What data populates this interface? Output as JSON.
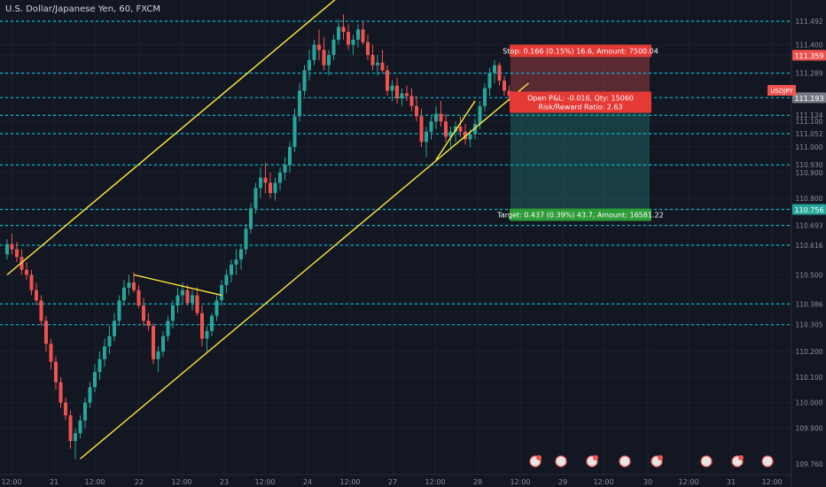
{
  "symbol_title": "U.S. Dollar/Japanese Yen, 60, FXCM",
  "ticker_badge": "USDJPY",
  "colors": {
    "background": "#131722",
    "up": "#26a69a",
    "down": "#ef5350",
    "trendline": "#ffeb3b",
    "level": "#00bcd4",
    "stop_zone": "#ef5350",
    "target_zone": "#26a69a"
  },
  "chart_data": {
    "type": "candlestick",
    "y_axis": {
      "ticks": [
        "111.492",
        "111.400",
        "111.359",
        "111.289",
        "111.193",
        "111.124",
        "111.100",
        "111.052",
        "111.000",
        "110.930",
        "110.900",
        "110.800",
        "110.756",
        "110.693",
        "110.616",
        "110.500",
        "110.386",
        "110.305",
        "110.200",
        "110.100",
        "110.000",
        "109.900",
        "109.760"
      ]
    },
    "x_axis": {
      "ticks": [
        "12:00",
        "21",
        "12:00",
        "22",
        "12:00",
        "23",
        "12:00",
        "24",
        "12:00",
        "27",
        "12:00",
        "28",
        "12:00",
        "29",
        "12:00",
        "30",
        "12:00",
        "31",
        "12:00"
      ]
    },
    "horizontal_levels": [
      111.492,
      111.289,
      111.193,
      111.124,
      111.052,
      110.93,
      110.756,
      110.693,
      110.616,
      110.386,
      110.305
    ],
    "highlighted_levels": [
      {
        "value": 111.359,
        "label": "111.359",
        "color": "#ef5350"
      },
      {
        "value": 111.193,
        "label": "111.193",
        "color": "#787b86"
      },
      {
        "value": 110.756,
        "label": "110.756",
        "color": "#26a69a"
      }
    ],
    "position": {
      "entry": 111.193,
      "stop": 111.359,
      "target": 110.756,
      "stop_label": "Stop: 0.166 (0.15%) 16.6, Amount: 7500.04",
      "open_pnl_label": "Open P&L: -0.016, Qty: 15060",
      "rr_label": "Risk/Reward Ratio: 2.63",
      "target_label": "Target: 0.437 (0.39%) 43.7, Amount: 16581.22"
    },
    "series": [
      {
        "type": "candlestick",
        "data": [
          [
            110.58,
            110.64,
            110.56,
            110.62
          ],
          [
            110.62,
            110.66,
            110.58,
            110.6
          ],
          [
            110.6,
            110.63,
            110.55,
            110.57
          ],
          [
            110.57,
            110.6,
            110.5,
            110.52
          ],
          [
            110.52,
            110.55,
            110.48,
            110.5
          ],
          [
            110.5,
            110.52,
            110.42,
            110.44
          ],
          [
            110.44,
            110.47,
            110.38,
            110.4
          ],
          [
            110.4,
            110.42,
            110.3,
            110.32
          ],
          [
            110.32,
            110.34,
            110.2,
            110.23
          ],
          [
            110.23,
            110.25,
            110.13,
            110.16
          ],
          [
            110.16,
            110.18,
            110.05,
            110.08
          ],
          [
            110.08,
            110.1,
            109.98,
            110.0
          ],
          [
            110.0,
            110.02,
            109.93,
            109.95
          ],
          [
            109.95,
            109.97,
            109.82,
            109.85
          ],
          [
            109.85,
            109.9,
            109.78,
            109.88
          ],
          [
            109.88,
            109.95,
            109.86,
            109.93
          ],
          [
            109.93,
            110.02,
            109.9,
            110.0
          ],
          [
            110.0,
            110.08,
            109.98,
            110.06
          ],
          [
            110.06,
            110.15,
            110.04,
            110.12
          ],
          [
            110.12,
            110.2,
            110.09,
            110.17
          ],
          [
            110.17,
            110.25,
            110.14,
            110.22
          ],
          [
            110.22,
            110.3,
            110.19,
            110.26
          ],
          [
            110.26,
            110.35,
            110.24,
            110.32
          ],
          [
            110.32,
            110.42,
            110.3,
            110.4
          ],
          [
            110.4,
            110.48,
            110.38,
            110.45
          ],
          [
            110.45,
            110.5,
            110.42,
            110.47
          ],
          [
            110.47,
            110.51,
            110.43,
            110.44
          ],
          [
            110.44,
            110.46,
            110.37,
            110.38
          ],
          [
            110.38,
            110.41,
            110.3,
            110.32
          ],
          [
            110.32,
            110.35,
            110.28,
            110.3
          ],
          [
            110.3,
            110.31,
            110.15,
            110.17
          ],
          [
            110.17,
            110.22,
            110.12,
            110.2
          ],
          [
            110.2,
            110.28,
            110.18,
            110.26
          ],
          [
            110.26,
            110.34,
            110.24,
            110.32
          ],
          [
            110.32,
            110.4,
            110.29,
            110.38
          ],
          [
            110.38,
            110.45,
            110.35,
            110.42
          ],
          [
            110.42,
            110.47,
            110.39,
            110.44
          ],
          [
            110.44,
            110.46,
            110.38,
            110.39
          ],
          [
            110.39,
            110.44,
            110.36,
            110.42
          ],
          [
            110.42,
            110.45,
            110.34,
            110.35
          ],
          [
            110.35,
            110.38,
            110.22,
            110.25
          ],
          [
            110.25,
            110.3,
            110.2,
            110.28
          ],
          [
            110.28,
            110.35,
            110.26,
            110.34
          ],
          [
            110.34,
            110.42,
            110.32,
            110.4
          ],
          [
            110.4,
            110.48,
            110.38,
            110.46
          ],
          [
            110.46,
            110.52,
            110.43,
            110.5
          ],
          [
            110.5,
            110.56,
            110.47,
            110.54
          ],
          [
            110.54,
            110.6,
            110.5,
            110.56
          ],
          [
            110.56,
            110.62,
            110.52,
            110.6
          ],
          [
            110.6,
            110.7,
            110.58,
            110.68
          ],
          [
            110.68,
            110.78,
            110.66,
            110.76
          ],
          [
            110.76,
            110.86,
            110.74,
            110.84
          ],
          [
            110.84,
            110.92,
            110.8,
            110.88
          ],
          [
            110.88,
            110.94,
            110.82,
            110.86
          ],
          [
            110.86,
            110.9,
            110.8,
            110.82
          ],
          [
            110.82,
            110.88,
            110.79,
            110.86
          ],
          [
            110.86,
            110.92,
            110.83,
            110.9
          ],
          [
            110.9,
            110.96,
            110.87,
            110.93
          ],
          [
            110.93,
            111.02,
            110.9,
            111.0
          ],
          [
            111.0,
            111.15,
            110.98,
            111.12
          ],
          [
            111.12,
            111.25,
            111.1,
            111.22
          ],
          [
            111.22,
            111.32,
            111.2,
            111.3
          ],
          [
            111.3,
            111.38,
            111.26,
            111.34
          ],
          [
            111.34,
            111.42,
            111.32,
            111.4
          ],
          [
            111.4,
            111.46,
            111.34,
            111.38
          ],
          [
            111.38,
            111.43,
            111.3,
            111.32
          ],
          [
            111.32,
            111.38,
            111.28,
            111.36
          ],
          [
            111.36,
            111.44,
            111.34,
            111.42
          ],
          [
            111.42,
            111.5,
            111.4,
            111.47
          ],
          [
            111.47,
            111.52,
            111.42,
            111.45
          ],
          [
            111.45,
            111.48,
            111.38,
            111.4
          ],
          [
            111.4,
            111.44,
            111.36,
            111.42
          ],
          [
            111.42,
            111.48,
            111.39,
            111.46
          ],
          [
            111.46,
            111.49,
            111.4,
            111.41
          ],
          [
            111.41,
            111.44,
            111.34,
            111.36
          ],
          [
            111.36,
            111.4,
            111.3,
            111.32
          ],
          [
            111.32,
            111.36,
            111.28,
            111.33
          ],
          [
            111.33,
            111.38,
            111.29,
            111.3
          ],
          [
            111.3,
            111.32,
            111.2,
            111.22
          ],
          [
            111.22,
            111.26,
            111.18,
            111.24
          ],
          [
            111.24,
            111.27,
            111.17,
            111.19
          ],
          [
            111.19,
            111.23,
            111.16,
            111.21
          ],
          [
            111.21,
            111.24,
            111.18,
            111.2
          ],
          [
            111.2,
            111.23,
            111.14,
            111.16
          ],
          [
            111.16,
            111.2,
            111.1,
            111.12
          ],
          [
            111.12,
            111.15,
            111.0,
            111.02
          ],
          [
            111.02,
            111.08,
            110.96,
            111.06
          ],
          [
            111.06,
            111.12,
            111.03,
            111.1
          ],
          [
            111.1,
            111.16,
            111.07,
            111.13
          ],
          [
            111.13,
            111.18,
            111.08,
            111.1
          ],
          [
            111.1,
            111.13,
            111.02,
            111.04
          ],
          [
            111.04,
            111.08,
            111.0,
            111.06
          ],
          [
            111.06,
            111.1,
            111.02,
            111.08
          ],
          [
            111.08,
            111.12,
            111.04,
            111.06
          ],
          [
            111.06,
            111.09,
            111.01,
            111.03
          ],
          [
            111.03,
            111.07,
            111.0,
            111.05
          ],
          [
            111.05,
            111.11,
            111.03,
            111.09
          ],
          [
            111.09,
            111.18,
            111.07,
            111.16
          ],
          [
            111.16,
            111.25,
            111.14,
            111.23
          ],
          [
            111.23,
            111.31,
            111.2,
            111.29
          ],
          [
            111.29,
            111.34,
            111.25,
            111.32
          ],
          [
            111.32,
            111.33,
            111.24,
            111.26
          ],
          [
            111.26,
            111.28,
            111.2,
            111.22
          ],
          [
            111.22,
            111.24,
            111.18,
            111.2
          ]
        ]
      }
    ],
    "annotations": {
      "channel_upper": [
        [
          0,
          110.5
        ],
        [
          75,
          111.7
        ]
      ],
      "channel_lower": [
        [
          15,
          109.78
        ],
        [
          107,
          111.25
        ]
      ],
      "triangle_1": [
        [
          26,
          110.5
        ],
        [
          44,
          110.42
        ]
      ],
      "triangle_2": [
        [
          88,
          110.95
        ],
        [
          96,
          111.18
        ]
      ]
    }
  }
}
